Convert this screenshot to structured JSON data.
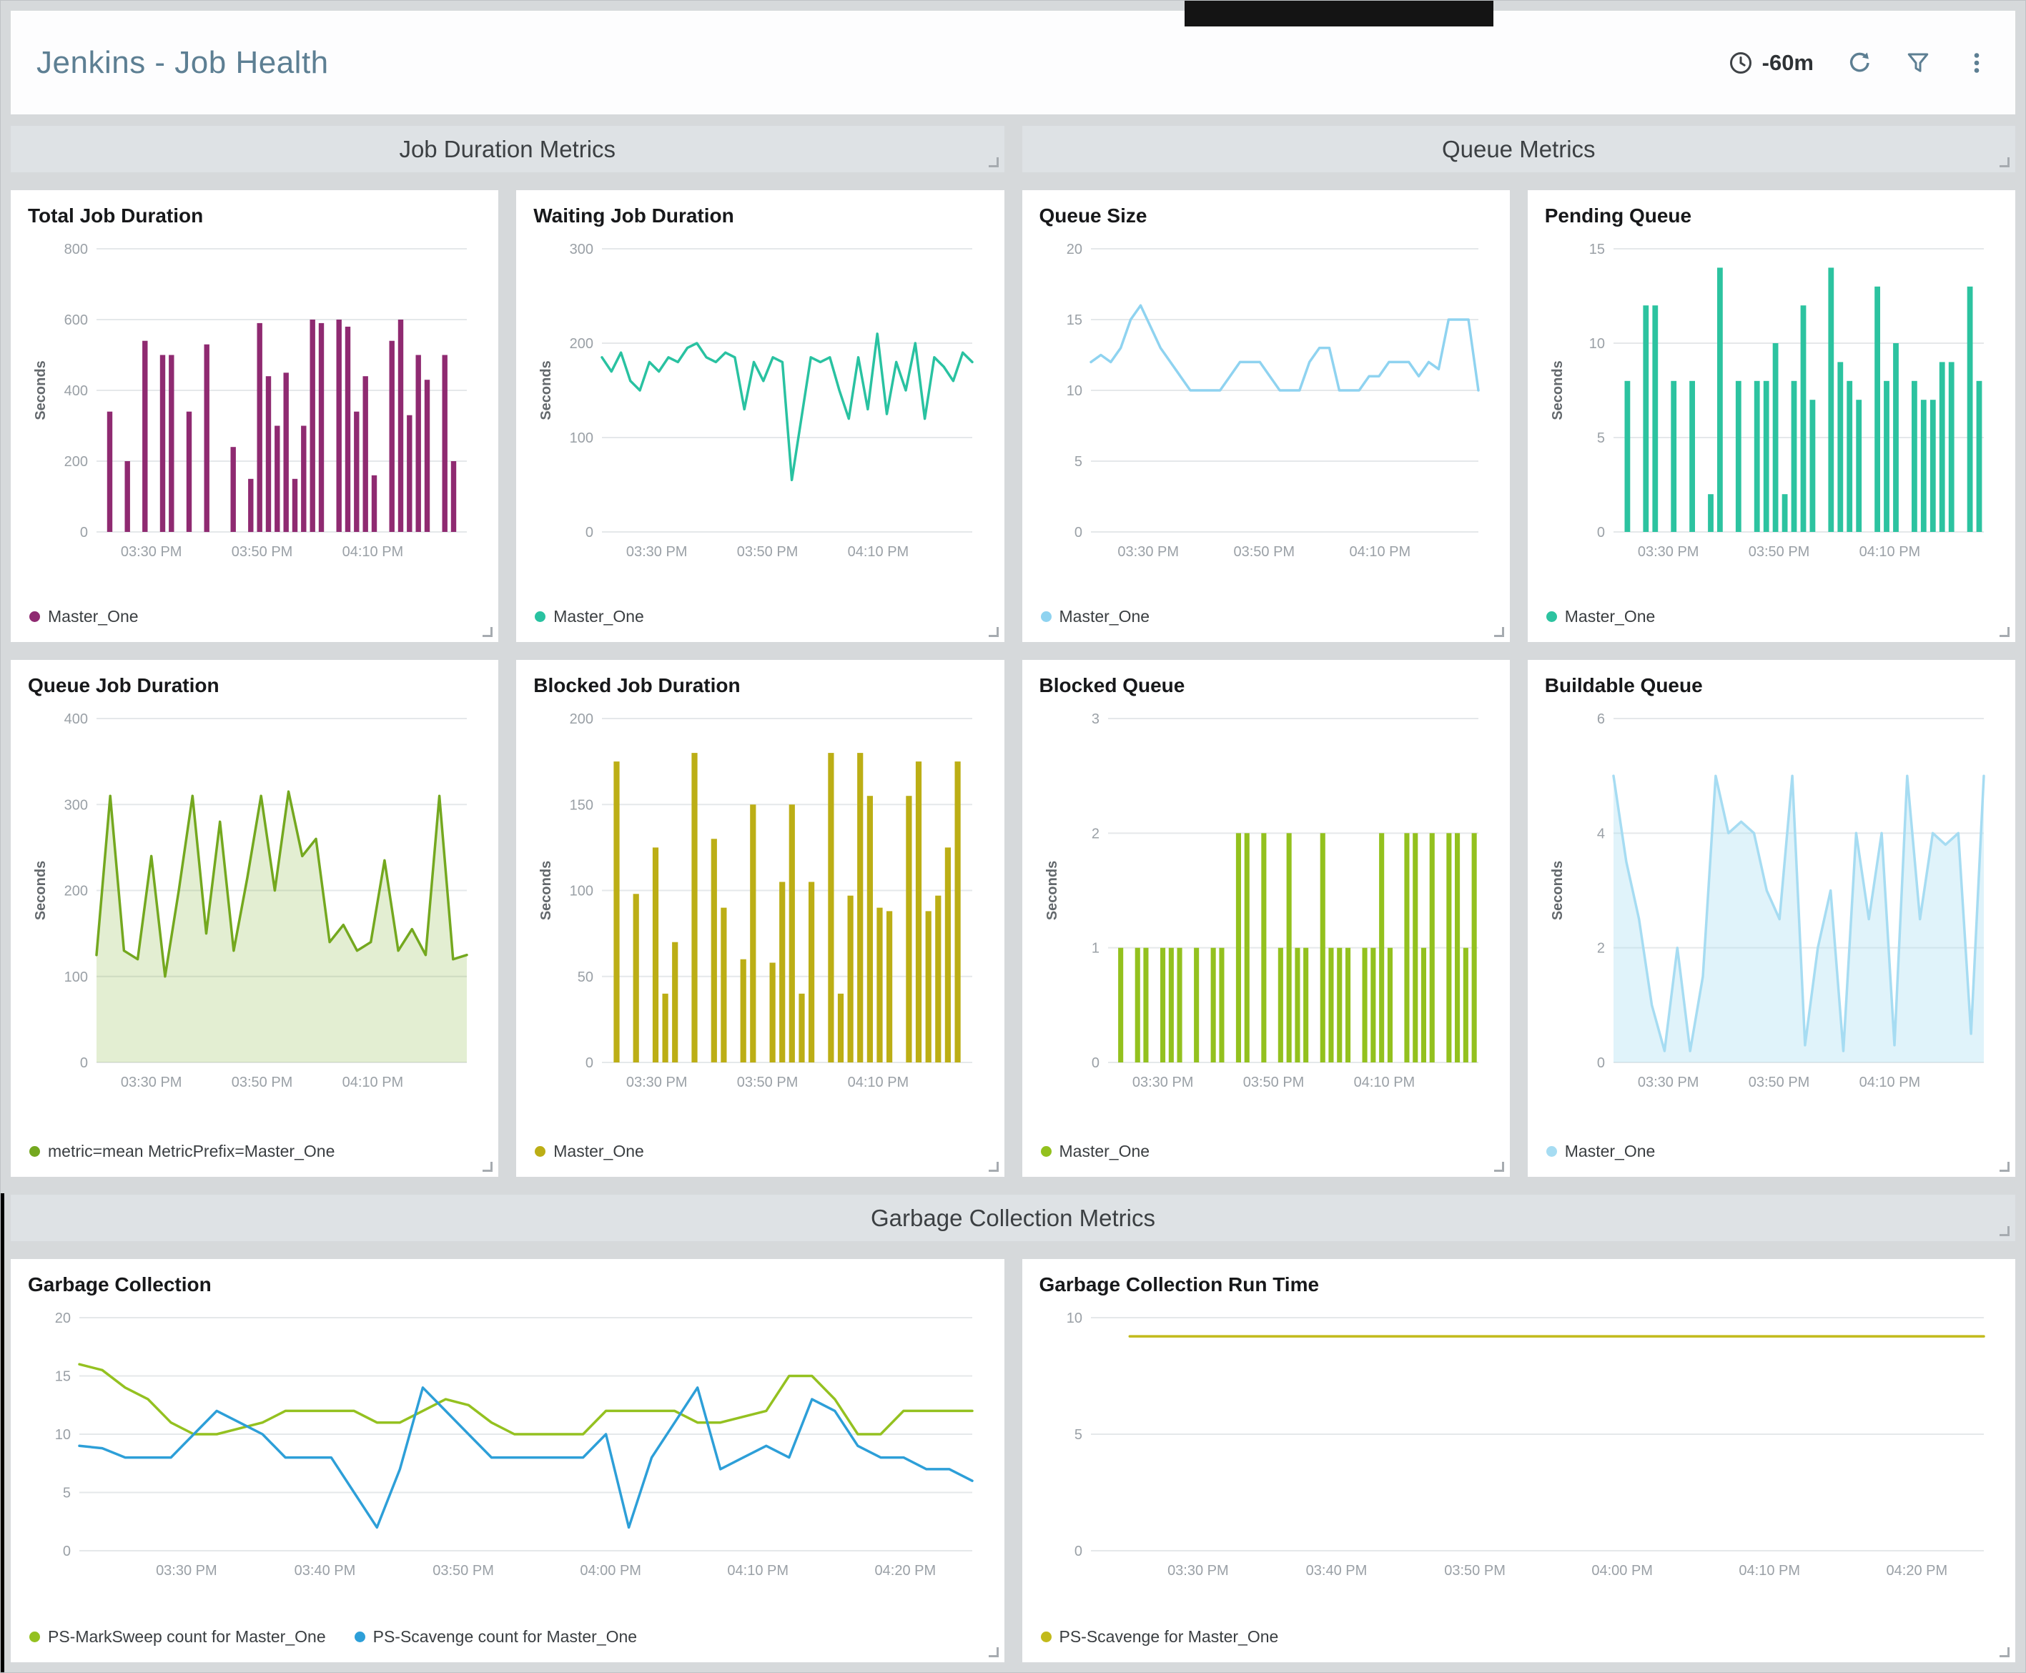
{
  "header": {
    "title": "Jenkins - Job Health",
    "time_range": "-60m"
  },
  "sections": [
    {
      "id": "job-duration",
      "label": "Job Duration Metrics"
    },
    {
      "id": "queue",
      "label": "Queue Metrics"
    },
    {
      "id": "garbage-collection",
      "label": "Garbage Collection Metrics"
    }
  ],
  "colors": {
    "header_title": "#5d7f93",
    "section_bg": "#dee2e5",
    "panel_bg": "#ffffff",
    "page_bg": "#d6d9db",
    "axis_text": "#9aa0a6",
    "gridline": "#e5e8ea"
  },
  "chart_data": [
    {
      "title": "Total Job Duration",
      "type": "bar",
      "ylabel": "Seconds",
      "ylim": [
        0,
        800
      ],
      "yticks": [
        0,
        200,
        400,
        600,
        800
      ],
      "xticks": {
        "labels": [
          "03:30 PM",
          "03:50 PM",
          "04:10 PM"
        ],
        "pos": [
          0.148,
          0.447,
          0.746
        ]
      },
      "series": [
        {
          "name": "Master_One",
          "color": "#8f2a71",
          "values": [
            0,
            340,
            0,
            200,
            0,
            540,
            0,
            500,
            500,
            0,
            340,
            0,
            530,
            0,
            0,
            240,
            0,
            150,
            590,
            440,
            300,
            450,
            150,
            300,
            600,
            590,
            0,
            600,
            580,
            340,
            440,
            160,
            0,
            540,
            600,
            330,
            500,
            430,
            0,
            500,
            200,
            0
          ]
        }
      ],
      "legend": [
        {
          "label": "Master_One",
          "color": "#8f2a71"
        }
      ]
    },
    {
      "title": "Waiting Job Duration",
      "type": "line",
      "ylabel": "Seconds",
      "ylim": [
        0,
        300
      ],
      "yticks": [
        0,
        100,
        200,
        300
      ],
      "xticks": {
        "labels": [
          "03:30 PM",
          "03:50 PM",
          "04:10 PM"
        ],
        "pos": [
          0.148,
          0.447,
          0.746
        ]
      },
      "series": [
        {
          "name": "Master_One",
          "color": "#29c2a1",
          "values": [
            185,
            170,
            190,
            160,
            150,
            180,
            170,
            185,
            180,
            195,
            200,
            185,
            180,
            190,
            185,
            130,
            180,
            160,
            185,
            180,
            55,
            120,
            185,
            180,
            185,
            150,
            120,
            185,
            130,
            210,
            125,
            180,
            150,
            200,
            120,
            185,
            175,
            160,
            190,
            180
          ]
        }
      ],
      "legend": [
        {
          "label": "Master_One",
          "color": "#29c2a1"
        }
      ]
    },
    {
      "title": "Queue Size",
      "type": "line",
      "ylabel": "",
      "ylim": [
        0,
        20
      ],
      "yticks": [
        0,
        5,
        10,
        15,
        20
      ],
      "xticks": {
        "labels": [
          "03:30 PM",
          "03:50 PM",
          "04:10 PM"
        ],
        "pos": [
          0.148,
          0.447,
          0.746
        ]
      },
      "series": [
        {
          "name": "Master_One",
          "color": "#8fd3f0",
          "values": [
            12,
            12.5,
            12,
            13,
            15,
            16,
            14.5,
            13,
            12,
            11,
            10,
            10,
            10,
            10,
            11,
            12,
            12,
            12,
            11,
            10,
            10,
            10,
            12,
            13,
            13,
            10,
            10,
            10,
            11,
            11,
            12,
            12,
            12,
            11,
            12,
            11.5,
            15,
            15,
            15,
            10
          ]
        }
      ],
      "legend": [
        {
          "label": "Master_One",
          "color": "#8fd3f0"
        }
      ]
    },
    {
      "title": "Pending Queue",
      "type": "bar",
      "ylabel": "Seconds",
      "ylim": [
        0,
        15
      ],
      "yticks": [
        0,
        5,
        10,
        15
      ],
      "xticks": {
        "labels": [
          "03:30 PM",
          "03:50 PM",
          "04:10 PM"
        ],
        "pos": [
          0.148,
          0.447,
          0.746
        ]
      },
      "series": [
        {
          "name": "Master_One",
          "color": "#2cc3a0",
          "values": [
            0,
            8,
            0,
            12,
            12,
            0,
            8,
            0,
            8,
            0,
            2,
            14,
            0,
            8,
            0,
            8,
            8,
            10,
            2,
            8,
            12,
            7,
            0,
            14,
            9,
            8,
            7,
            0,
            13,
            8,
            10,
            0,
            8,
            7,
            7,
            9,
            9,
            0,
            13,
            8
          ]
        }
      ],
      "legend": [
        {
          "label": "Master_One",
          "color": "#2cc3a0"
        }
      ]
    },
    {
      "title": "Queue Job Duration",
      "type": "area",
      "ylabel": "Seconds",
      "ylim": [
        0,
        400
      ],
      "yticks": [
        0,
        100,
        200,
        300,
        400
      ],
      "xticks": {
        "labels": [
          "03:30 PM",
          "03:50 PM",
          "04:10 PM"
        ],
        "pos": [
          0.148,
          0.447,
          0.746
        ]
      },
      "series": [
        {
          "name": "metric=mean MetricPrefix=Master_One",
          "color": "#74a81f",
          "fill_opacity": 0.2,
          "values": [
            125,
            310,
            130,
            120,
            240,
            100,
            200,
            310,
            150,
            280,
            130,
            215,
            310,
            200,
            315,
            240,
            260,
            140,
            160,
            130,
            140,
            235,
            130,
            155,
            125,
            310,
            120,
            125
          ]
        }
      ],
      "legend": [
        {
          "label": "metric=mean MetricPrefix=Master_One",
          "color": "#74a81f"
        }
      ]
    },
    {
      "title": "Blocked Job Duration",
      "type": "bar",
      "ylabel": "Seconds",
      "ylim": [
        0,
        200
      ],
      "yticks": [
        0,
        50,
        100,
        150,
        200
      ],
      "xticks": {
        "labels": [
          "03:30 PM",
          "03:50 PM",
          "04:10 PM"
        ],
        "pos": [
          0.148,
          0.447,
          0.746
        ]
      },
      "series": [
        {
          "name": "Master_One",
          "color": "#bcae15",
          "values": [
            0,
            175,
            0,
            98,
            0,
            125,
            40,
            70,
            0,
            180,
            0,
            130,
            90,
            0,
            60,
            150,
            0,
            58,
            105,
            150,
            40,
            105,
            0,
            180,
            40,
            97,
            180,
            155,
            90,
            88,
            0,
            155,
            175,
            88,
            97,
            125,
            175,
            0
          ]
        }
      ],
      "legend": [
        {
          "label": "Master_One",
          "color": "#bcae15"
        }
      ]
    },
    {
      "title": "Blocked Queue",
      "type": "bar",
      "ylabel": "Seconds",
      "ylim": [
        0,
        3
      ],
      "yticks": [
        0,
        1,
        2,
        3
      ],
      "xticks": {
        "labels": [
          "03:30 PM",
          "03:50 PM",
          "04:10 PM"
        ],
        "pos": [
          0.148,
          0.447,
          0.746
        ]
      },
      "series": [
        {
          "name": "Master_One",
          "color": "#93c11e",
          "values": [
            0,
            1,
            0,
            1,
            1,
            0,
            1,
            1,
            1,
            0,
            1,
            0,
            1,
            1,
            0,
            2,
            2,
            0,
            2,
            0,
            1,
            2,
            1,
            1,
            0,
            2,
            1,
            1,
            1,
            0,
            1,
            1,
            2,
            1,
            0,
            2,
            2,
            1,
            2,
            0,
            2,
            2,
            1,
            2
          ]
        }
      ],
      "legend": [
        {
          "label": "Master_One",
          "color": "#93c11e"
        }
      ]
    },
    {
      "title": "Buildable Queue",
      "type": "area",
      "ylabel": "Seconds",
      "ylim": [
        0,
        6
      ],
      "yticks": [
        0,
        2,
        4,
        6
      ],
      "xticks": {
        "labels": [
          "03:30 PM",
          "03:50 PM",
          "04:10 PM"
        ],
        "pos": [
          0.148,
          0.447,
          0.746
        ]
      },
      "series": [
        {
          "name": "Master_One",
          "color": "#a6dcf2",
          "fill_opacity": 0.35,
          "values": [
            5,
            3.5,
            2.5,
            1,
            0.2,
            2,
            0.2,
            1.5,
            5,
            4,
            4.2,
            4,
            3,
            2.5,
            5,
            0.3,
            2,
            3,
            0.2,
            4,
            2.5,
            4,
            0.3,
            5,
            2.5,
            4,
            3.8,
            4,
            0.5,
            5
          ]
        }
      ],
      "legend": [
        {
          "label": "Master_One",
          "color": "#a6dcf2"
        }
      ]
    },
    {
      "title": "Garbage Collection",
      "type": "line",
      "ylabel": "",
      "ylim": [
        0,
        20
      ],
      "yticks": [
        0,
        5,
        10,
        15,
        20
      ],
      "xticks": {
        "labels": [
          "03:30 PM",
          "03:40 PM",
          "03:50 PM",
          "04:00 PM",
          "04:10 PM",
          "04:20 PM"
        ],
        "pos": [
          0.12,
          0.275,
          0.43,
          0.595,
          0.76,
          0.925
        ]
      },
      "series": [
        {
          "name": "PS-MarkSweep count for Master_One",
          "color": "#94c120",
          "values": [
            16,
            15.5,
            14,
            13,
            11,
            10,
            10,
            10.5,
            11,
            12,
            12,
            12,
            12,
            11,
            11,
            12,
            13,
            12.5,
            11,
            10,
            10,
            10,
            10,
            12,
            12,
            12,
            12,
            11,
            11,
            11.5,
            12,
            15,
            15,
            13,
            10,
            10,
            12,
            12,
            12,
            12
          ]
        },
        {
          "name": "PS-Scavenge count for Master_One",
          "color": "#2d9fd8",
          "values": [
            9,
            8.8,
            8,
            8,
            8,
            10,
            12,
            11,
            10,
            8,
            8,
            8,
            5,
            2,
            7,
            14,
            12,
            10,
            8,
            8,
            8,
            8,
            8,
            10,
            2,
            8,
            11,
            14,
            7,
            8,
            9,
            8,
            13,
            12,
            9,
            8,
            8,
            7,
            7,
            6
          ]
        }
      ],
      "legend": [
        {
          "label": "PS-MarkSweep count for Master_One",
          "color": "#94c120"
        },
        {
          "label": "PS-Scavenge count for Master_One",
          "color": "#2d9fd8"
        }
      ]
    },
    {
      "title": "Garbage Collection Run Time",
      "type": "line",
      "ylabel": "",
      "ylim": [
        0,
        10
      ],
      "yticks": [
        0,
        5,
        10
      ],
      "xticks": {
        "labels": [
          "03:30 PM",
          "03:40 PM",
          "03:50 PM",
          "04:00 PM",
          "04:10 PM",
          "04:20 PM"
        ],
        "pos": [
          0.12,
          0.275,
          0.43,
          0.595,
          0.76,
          0.925
        ]
      },
      "series": [
        {
          "name": "PS-Scavenge for Master_One",
          "color": "#c2ba1b",
          "values": [
            null,
            9.2,
            9.2,
            9.2,
            9.2,
            9.2,
            9.2,
            9.2,
            9.2,
            9.2,
            9.2,
            9.2,
            9.2,
            9.2,
            9.2,
            9.2,
            9.2,
            9.2,
            9.2,
            9.2,
            9.2,
            9.2,
            9.2,
            9.2
          ]
        }
      ],
      "legend": [
        {
          "label": "PS-Scavenge for Master_One",
          "color": "#c2ba1b"
        }
      ]
    }
  ]
}
